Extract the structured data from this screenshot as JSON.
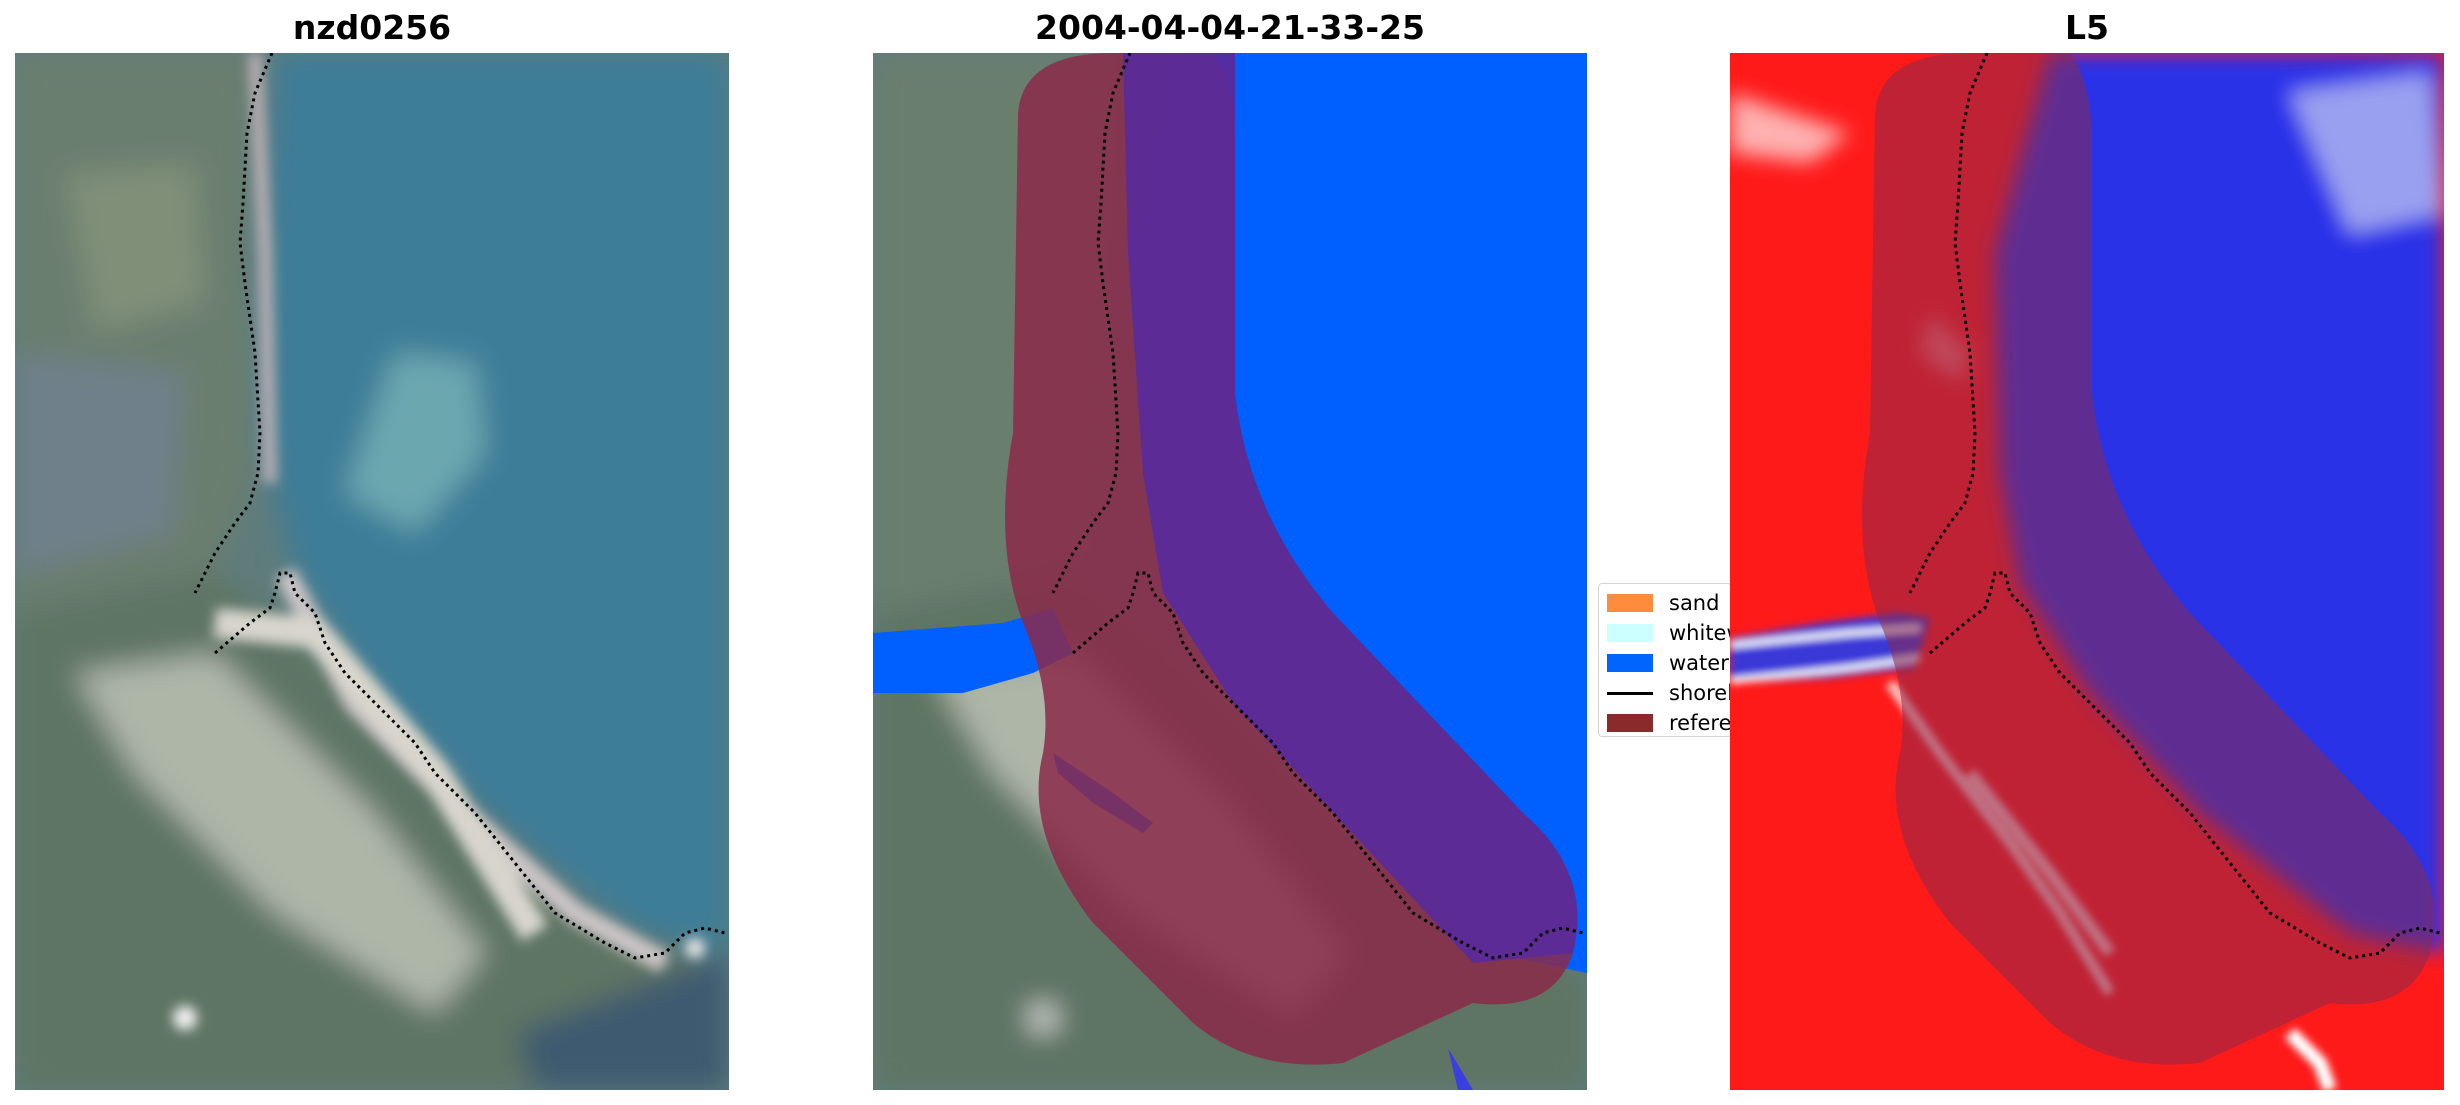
{
  "panels": [
    {
      "title": "nzd0256",
      "kind": "rgb"
    },
    {
      "title": "2004-04-04-21-33-25",
      "kind": "classified"
    },
    {
      "title": "L5",
      "kind": "index"
    }
  ],
  "legend": {
    "items": [
      {
        "label": "sand",
        "color": "#ff8c3c"
      },
      {
        "label": "whitewater",
        "color": "#ccffff"
      },
      {
        "label": "water",
        "color": "#0064ff"
      },
      {
        "label": "shoreline",
        "color": "#000000"
      },
      {
        "label": "reference",
        "color": "#8b2a2a"
      }
    ]
  },
  "colors": {
    "water_class": "#0060ff",
    "reference_buffer": "#8b2a4a",
    "index_land": "#ff1010",
    "index_water": "#2a30e8"
  }
}
